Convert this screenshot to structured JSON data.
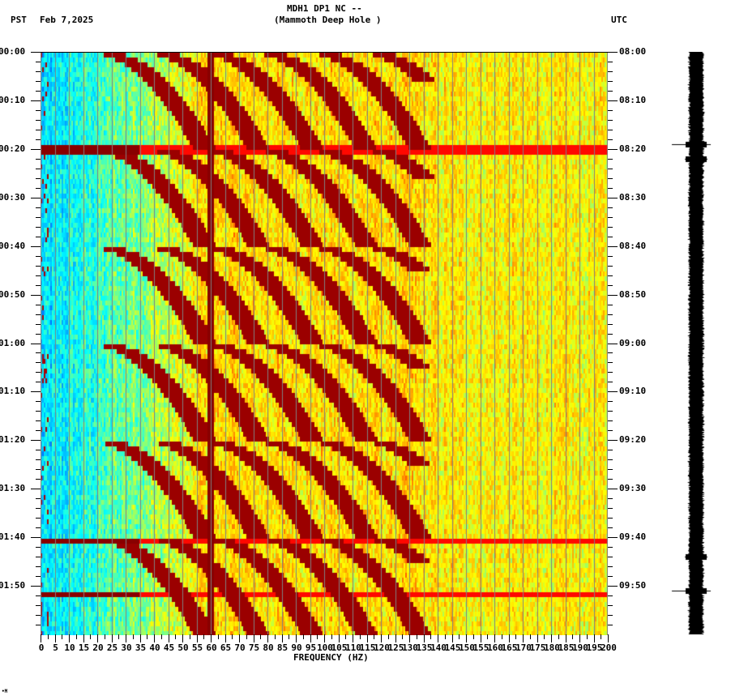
{
  "header": {
    "title_line1": "MDH1 DP1 NC --",
    "title_line2": "(Mammoth Deep Hole )",
    "left_timezone": "PST",
    "date": "Feb 7,2025",
    "right_timezone": "UTC"
  },
  "footer_mark": "•M",
  "chart_data": {
    "type": "heatmap",
    "title": "MDH1 DP1 NC -- (Mammoth Deep Hole )",
    "subtitle": "Feb 7,2025",
    "xlabel": "FREQUENCY (HZ)",
    "ylabel_left": "PST",
    "ylabel_right": "UTC",
    "xlim": [
      0,
      200
    ],
    "x_ticks": [
      0,
      5,
      10,
      15,
      20,
      25,
      30,
      35,
      40,
      45,
      50,
      55,
      60,
      65,
      70,
      75,
      80,
      85,
      90,
      95,
      100,
      105,
      110,
      115,
      120,
      125,
      130,
      135,
      140,
      145,
      150,
      155,
      160,
      165,
      170,
      175,
      180,
      185,
      190,
      195,
      200
    ],
    "y_ticks_left": [
      "00:00",
      "00:10",
      "00:20",
      "00:30",
      "00:40",
      "00:50",
      "01:00",
      "01:10",
      "01:20",
      "01:30",
      "01:40",
      "01:50"
    ],
    "y_ticks_right": [
      "08:00",
      "08:10",
      "08:20",
      "08:30",
      "08:40",
      "08:50",
      "09:00",
      "09:10",
      "09:20",
      "09:30",
      "09:40",
      "09:50"
    ],
    "time_span_minutes": 120,
    "minor_tick_minutes": 2,
    "grid": "vertical gridlines every 5 Hz",
    "colormap": [
      "#0000ff",
      "#00a0ff",
      "#00ffff",
      "#80ff80",
      "#ffff00",
      "#ffa500",
      "#ff0000",
      "#800000"
    ],
    "features": {
      "persistent_line_hz": 60,
      "low_freq_band_hz": [
        0,
        25
      ],
      "low_freq_level": "low (blue/cyan)",
      "high_freq_level": "moderate (yellow/orange)",
      "arc_cycle_minutes": 20,
      "arc_onsets_min": [
        0,
        20,
        40,
        60,
        80,
        100
      ],
      "arc_start_freq_hz": 20,
      "broadband_events_min": [
        20,
        101,
        112
      ]
    },
    "waveform_events_min": [
      19,
      22,
      104,
      111
    ]
  }
}
